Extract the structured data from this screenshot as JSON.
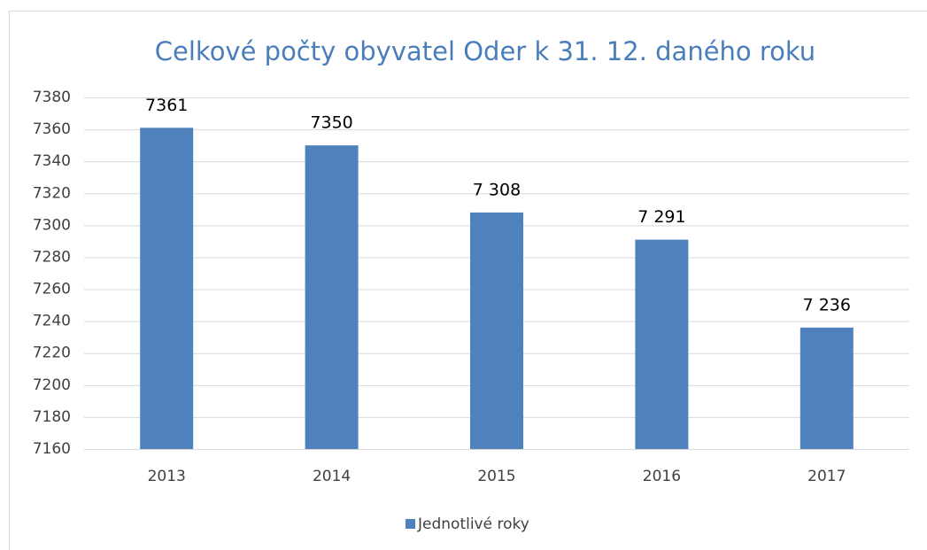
{
  "chart_data": {
    "type": "bar",
    "title": "Celkové počty obyvatel Oder k 31. 12. daného roku",
    "categories": [
      "2013",
      "2014",
      "2015",
      "2016",
      "2017"
    ],
    "series": [
      {
        "name": "Jednotlivé roky",
        "color": "#4f81bd",
        "values": [
          7361,
          7350,
          7308,
          7291,
          7236
        ],
        "value_labels": [
          "7361",
          "7350",
          "7 308",
          "7 291",
          "7 236"
        ]
      }
    ],
    "ylim": [
      7160,
      7380
    ],
    "yticks": [
      7160,
      7180,
      7200,
      7220,
      7240,
      7260,
      7280,
      7300,
      7320,
      7340,
      7360,
      7380
    ],
    "grid": true,
    "legend": "bottom"
  }
}
